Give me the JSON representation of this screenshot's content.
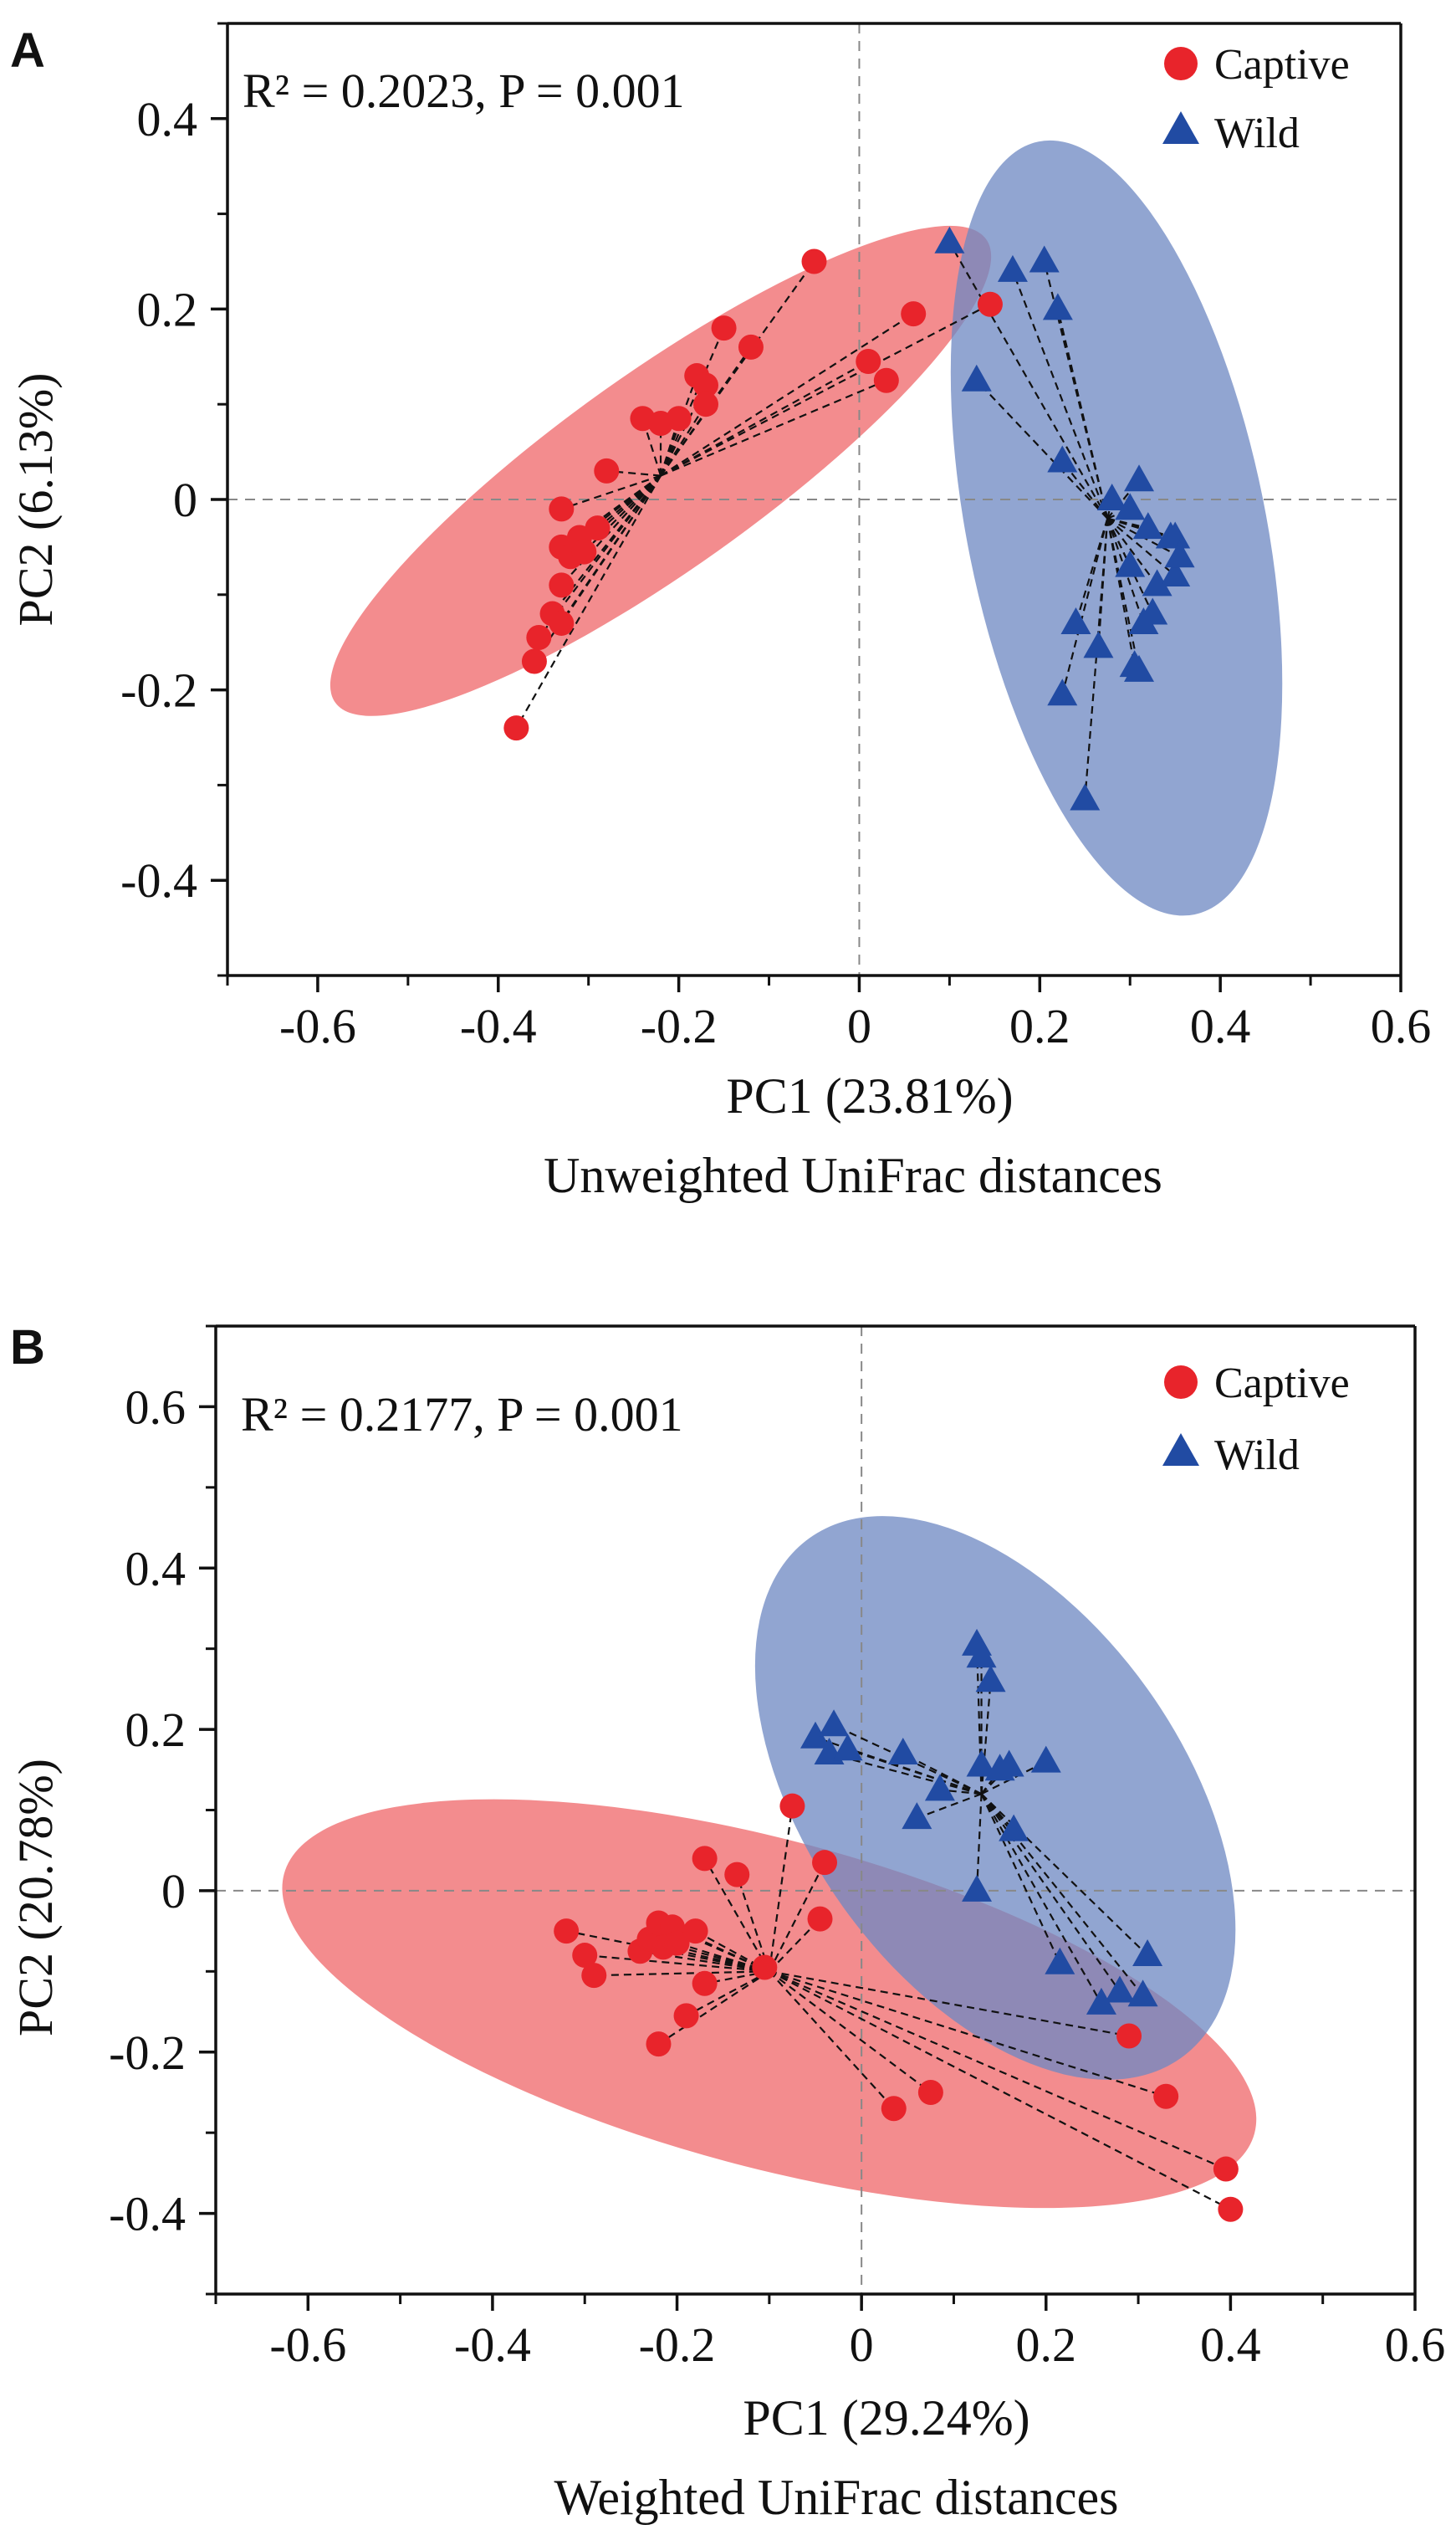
{
  "colors": {
    "captive": "#e8242b",
    "wild": "#214ba3",
    "captive_ellipse": "#ef6b6e",
    "wild_ellipse": "#6f89c2",
    "spoke": "#111111",
    "axis": "#111111",
    "guide": "#888888"
  },
  "chart_data": [
    {
      "type": "scatter",
      "panel_label": "A",
      "annotation": "R² = 0.2023, P = 0.001",
      "xlabel": "PC1 (23.81%)",
      "ylabel": "PC2 (6.13%)",
      "caption": "Unweighted UniFrac distances",
      "xlim": [
        -0.7,
        0.6
      ],
      "ylim": [
        -0.5,
        0.5
      ],
      "xticks": [
        -0.6,
        -0.4,
        -0.2,
        0,
        0.2,
        0.4,
        0.6
      ],
      "xtick_labels": [
        "-0.6",
        "-0.4",
        "-0.2",
        "0",
        "0.2",
        "0.4",
        "0.6"
      ],
      "yticks": [
        0.4,
        0.2,
        0,
        -0.2,
        -0.4
      ],
      "ytick_labels": [
        "0.4",
        "0.2",
        "0",
        "-0.2",
        "-0.4"
      ],
      "legend": {
        "position": "top-right",
        "entries": [
          "Captive",
          "Wild"
        ]
      },
      "series": [
        {
          "name": "Captive",
          "marker": "circle",
          "centroid": [
            -0.22,
            0.025
          ],
          "ellipse": {
            "center": [
              -0.22,
              0.03
            ],
            "semi_major": 0.435,
            "semi_minor": 0.105,
            "angle_deg": 34
          },
          "points": [
            [
              -0.05,
              0.25
            ],
            [
              0.06,
              0.195
            ],
            [
              0.145,
              0.205
            ],
            [
              0.01,
              0.145
            ],
            [
              0.03,
              0.125
            ],
            [
              -0.15,
              0.18
            ],
            [
              -0.12,
              0.16
            ],
            [
              -0.18,
              0.13
            ],
            [
              -0.17,
              0.12
            ],
            [
              -0.17,
              0.1
            ],
            [
              -0.2,
              0.085
            ],
            [
              -0.24,
              0.085
            ],
            [
              -0.22,
              0.08
            ],
            [
              -0.28,
              0.03
            ],
            [
              -0.33,
              -0.01
            ],
            [
              -0.29,
              -0.03
            ],
            [
              -0.33,
              -0.05
            ],
            [
              -0.32,
              -0.06
            ],
            [
              -0.31,
              -0.04
            ],
            [
              -0.305,
              -0.055
            ],
            [
              -0.33,
              -0.09
            ],
            [
              -0.34,
              -0.12
            ],
            [
              -0.33,
              -0.13
            ],
            [
              -0.355,
              -0.145
            ],
            [
              -0.36,
              -0.17
            ],
            [
              -0.38,
              -0.24
            ]
          ]
        },
        {
          "name": "Wild",
          "marker": "triangle",
          "centroid": [
            0.275,
            -0.02
          ],
          "ellipse": {
            "center": [
              0.285,
              -0.03
            ],
            "semi_major": 0.415,
            "semi_minor": 0.165,
            "angle_deg": -78
          },
          "points": [
            [
              0.1,
              0.27
            ],
            [
              0.17,
              0.24
            ],
            [
              0.205,
              0.25
            ],
            [
              0.22,
              0.2
            ],
            [
              0.13,
              0.125
            ],
            [
              0.225,
              0.04
            ],
            [
              0.28,
              0.0
            ],
            [
              0.31,
              0.02
            ],
            [
              0.3,
              -0.01
            ],
            [
              0.32,
              -0.03
            ],
            [
              0.345,
              -0.04
            ],
            [
              0.35,
              -0.04
            ],
            [
              0.3,
              -0.07
            ],
            [
              0.33,
              -0.09
            ],
            [
              0.35,
              -0.08
            ],
            [
              0.355,
              -0.06
            ],
            [
              0.325,
              -0.12
            ],
            [
              0.315,
              -0.13
            ],
            [
              0.24,
              -0.13
            ],
            [
              0.265,
              -0.155
            ],
            [
              0.305,
              -0.175
            ],
            [
              0.31,
              -0.18
            ],
            [
              0.225,
              -0.205
            ],
            [
              0.25,
              -0.315
            ]
          ]
        }
      ]
    },
    {
      "type": "scatter",
      "panel_label": "B",
      "annotation": "R² = 0.2177, P = 0.001",
      "xlabel": "PC1 (29.24%)",
      "ylabel": "PC2 (20.78%)",
      "caption": "Weighted UniFrac distances",
      "xlim": [
        -0.7,
        0.6
      ],
      "ylim": [
        -0.5,
        0.7
      ],
      "xticks": [
        -0.6,
        -0.4,
        -0.2,
        0,
        0.2,
        0.4,
        0.6
      ],
      "xtick_labels": [
        "-0.6",
        "-0.4",
        "-0.2",
        "0",
        "0.2",
        "0.4",
        "0.6"
      ],
      "yticks": [
        0.6,
        0.4,
        0.2,
        0,
        -0.2,
        -0.4
      ],
      "ytick_labels": [
        "0.6",
        "0.4",
        "0.2",
        "0",
        "-0.2",
        "-0.4"
      ],
      "legend": {
        "position": "top-right",
        "entries": [
          "Captive",
          "Wild"
        ]
      },
      "series": [
        {
          "name": "Captive",
          "marker": "circle",
          "centroid": [
            -0.1,
            -0.1
          ],
          "ellipse": {
            "center": [
              -0.1,
              -0.14
            ],
            "semi_major": 0.55,
            "semi_minor": 0.2,
            "angle_deg": -17
          },
          "points": [
            [
              -0.075,
              0.105
            ],
            [
              -0.04,
              0.035
            ],
            [
              -0.17,
              0.04
            ],
            [
              -0.135,
              0.02
            ],
            [
              -0.045,
              -0.035
            ],
            [
              -0.32,
              -0.05
            ],
            [
              -0.3,
              -0.08
            ],
            [
              -0.29,
              -0.105
            ],
            [
              -0.24,
              -0.075
            ],
            [
              -0.23,
              -0.06
            ],
            [
              -0.22,
              -0.04
            ],
            [
              -0.205,
              -0.045
            ],
            [
              -0.215,
              -0.07
            ],
            [
              -0.18,
              -0.05
            ],
            [
              -0.2,
              -0.065
            ],
            [
              -0.17,
              -0.115
            ],
            [
              -0.19,
              -0.155
            ],
            [
              -0.22,
              -0.19
            ],
            [
              -0.105,
              -0.095
            ],
            [
              0.29,
              -0.18
            ],
            [
              0.33,
              -0.255
            ],
            [
              0.075,
              -0.25
            ],
            [
              0.035,
              -0.27
            ],
            [
              0.395,
              -0.345
            ],
            [
              0.4,
              -0.395
            ]
          ]
        },
        {
          "name": "Wild",
          "marker": "triangle",
          "centroid": [
            0.13,
            0.12
          ],
          "ellipse": {
            "center": [
              0.145,
              0.115
            ],
            "semi_major": 0.38,
            "semi_minor": 0.21,
            "angle_deg": -58
          },
          "points": [
            [
              0.125,
              0.305
            ],
            [
              0.13,
              0.29
            ],
            [
              0.14,
              0.26
            ],
            [
              -0.05,
              0.19
            ],
            [
              -0.03,
              0.205
            ],
            [
              -0.035,
              0.17
            ],
            [
              -0.015,
              0.175
            ],
            [
              0.045,
              0.17
            ],
            [
              0.13,
              0.155
            ],
            [
              0.15,
              0.15
            ],
            [
              0.16,
              0.155
            ],
            [
              0.2,
              0.16
            ],
            [
              0.085,
              0.125
            ],
            [
              0.06,
              0.09
            ],
            [
              0.165,
              0.075
            ],
            [
              0.125,
              0.0
            ],
            [
              0.215,
              -0.09
            ],
            [
              0.31,
              -0.08
            ],
            [
              0.26,
              -0.14
            ],
            [
              0.28,
              -0.125
            ],
            [
              0.305,
              -0.13
            ]
          ]
        }
      ]
    }
  ]
}
